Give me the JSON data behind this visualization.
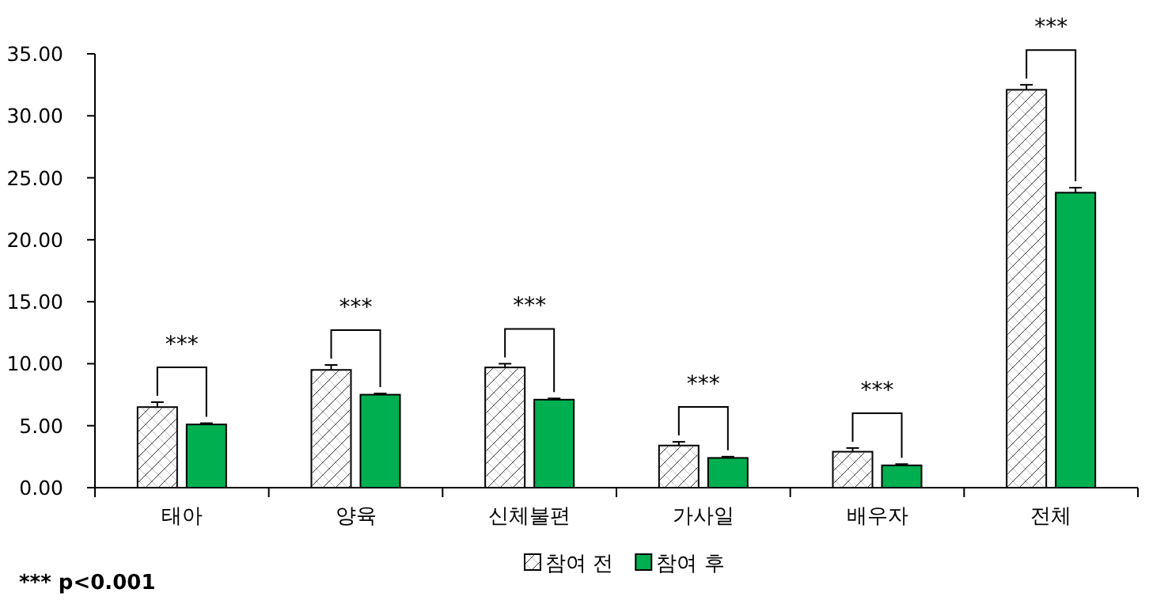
{
  "chart_data": {
    "type": "bar",
    "categories": [
      "태아",
      "양육",
      "신체불편",
      "가사일",
      "배우자",
      "전체"
    ],
    "series": [
      {
        "name": "참여 전",
        "color": "#ffffff",
        "values": [
          6.5,
          9.5,
          9.7,
          3.4,
          2.9,
          32.1
        ],
        "errors": [
          [
            6.5,
            6.9
          ],
          [
            9.5,
            9.9
          ],
          [
            9.7,
            10
          ],
          [
            3.4,
            3.7
          ],
          [
            2.9,
            3.2
          ],
          [
            32.1,
            32.5
          ]
        ]
      },
      {
        "name": "참여 후",
        "color": "#00b050",
        "values": [
          5.1,
          7.5,
          7.1,
          2.4,
          1.8,
          23.8
        ],
        "errors": [
          [
            5.1,
            5.2
          ],
          [
            7.5,
            7.6
          ],
          [
            7.1,
            7.2
          ],
          [
            2.4,
            2.5
          ],
          [
            1.8,
            1.9
          ],
          [
            23.8,
            24.2
          ]
        ]
      }
    ],
    "ylim": [
      0,
      35
    ],
    "yticks": [
      {
        "value": 0,
        "label": "0.00"
      },
      {
        "value": 5,
        "label": "5.00"
      },
      {
        "value": 10,
        "label": "10.00"
      },
      {
        "value": 15,
        "label": "15.00"
      },
      {
        "value": 20,
        "label": "20.00"
      },
      {
        "value": 25,
        "label": "25.00"
      },
      {
        "value": 30,
        "label": "30.00"
      },
      {
        "value": 35,
        "label": "35.00"
      }
    ],
    "grid": false,
    "legend": "bottom",
    "annotations": [
      "***",
      "***",
      "***",
      "***",
      "***",
      "***",
      "*** p<0.001"
    ]
  }
}
